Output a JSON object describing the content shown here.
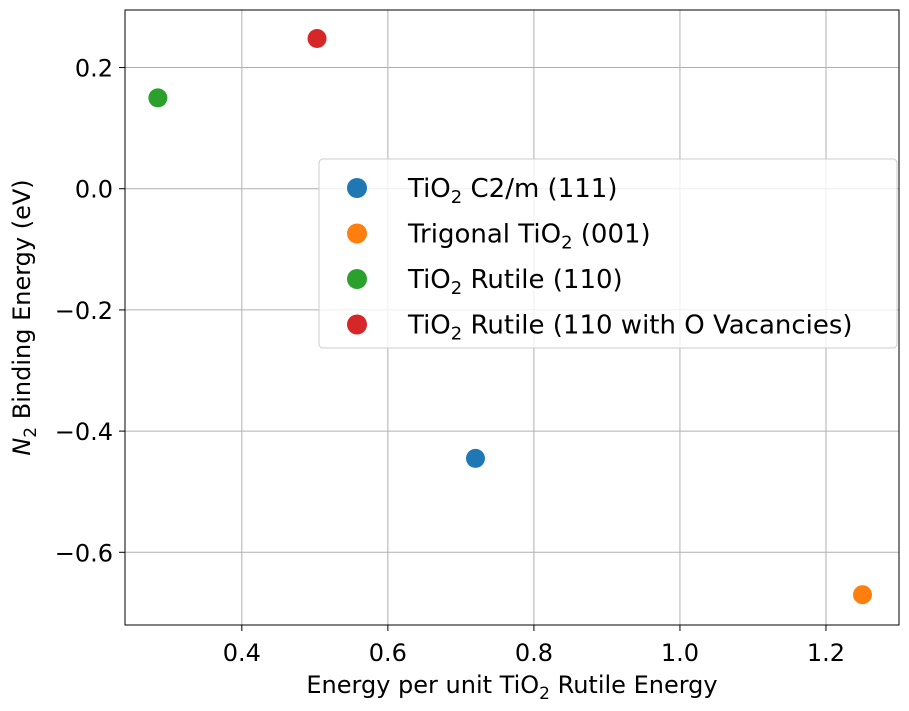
{
  "chart_data": {
    "type": "scatter",
    "title": "",
    "xlabel": {
      "pre": "Energy per unit TiO",
      "sub": "2",
      "post": " Rutile Energy"
    },
    "ylabel": {
      "italic": "N",
      "sub": "2",
      "post": " Binding Energy (eV)"
    },
    "xlim": [
      0.24,
      1.3
    ],
    "ylim": [
      -0.72,
      0.295
    ],
    "xticks": [
      0.4,
      0.6,
      0.8,
      1.0,
      1.2
    ],
    "xtick_labels": [
      "0.4",
      "0.6",
      "0.8",
      "1.0",
      "1.2"
    ],
    "yticks": [
      0.2,
      0.0,
      -0.2,
      -0.4,
      -0.6
    ],
    "ytick_labels": [
      "0.2",
      "0.0",
      "−0.2",
      "−0.4",
      "−0.6"
    ],
    "grid": true,
    "legend_position": "center-right",
    "series": [
      {
        "name": "TiO2 C2/m (111)",
        "label_parts": {
          "pre": "TiO",
          "sub": "2",
          "post": " C2/m (111)"
        },
        "color": "#1f77b4",
        "points": [
          {
            "x": 0.72,
            "y": -0.445
          }
        ]
      },
      {
        "name": "Trigonal TiO2 (001)",
        "label_parts": {
          "pre": "Trigonal TiO",
          "sub": "2",
          "post": " (001)"
        },
        "color": "#ff7f0e",
        "points": [
          {
            "x": 1.25,
            "y": -0.67
          }
        ]
      },
      {
        "name": "TiO2 Rutile (110)",
        "label_parts": {
          "pre": "TiO",
          "sub": "2",
          "post": " Rutile (110)"
        },
        "color": "#2ca02c",
        "points": [
          {
            "x": 0.285,
            "y": 0.15
          }
        ]
      },
      {
        "name": "TiO2 Rutile (110 with O Vacancies)",
        "label_parts": {
          "pre": "TiO",
          "sub": "2",
          "post": " Rutile (110 with O Vacancies)"
        },
        "color": "#d62728",
        "points": [
          {
            "x": 0.503,
            "y": 0.248
          }
        ]
      }
    ]
  }
}
